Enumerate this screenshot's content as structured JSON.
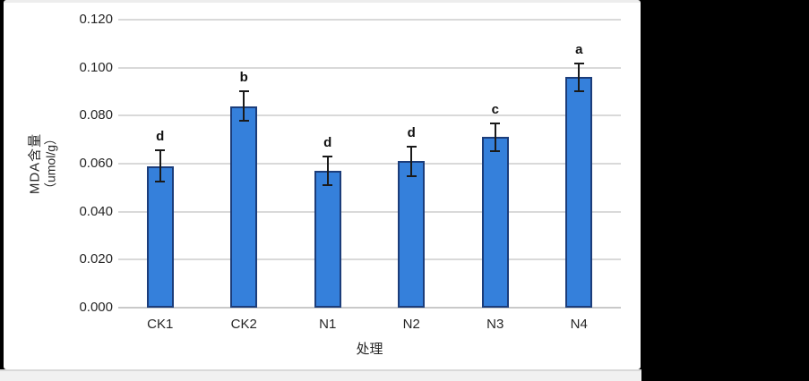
{
  "window": {
    "canvas_background": "#000000",
    "panel_background": "#ffffff"
  },
  "chart_data": {
    "type": "bar",
    "title": "",
    "categories": [
      "CK1",
      "CK2",
      "N1",
      "N2",
      "N3",
      "N4"
    ],
    "values": [
      0.059,
      0.084,
      0.057,
      0.061,
      0.071,
      0.096
    ],
    "errors": [
      0.007,
      0.0065,
      0.0065,
      0.0065,
      0.006,
      0.006
    ],
    "sig_letters": [
      "d",
      "b",
      "d",
      "d",
      "c",
      "a"
    ],
    "xlabel": "处理",
    "ylabel_line1": "MDA含量",
    "ylabel_line2": "（umol/g）",
    "ylim": [
      0,
      0.12
    ],
    "ytick_step": 0.02,
    "ytick_labels": [
      "0.000",
      "0.020",
      "0.040",
      "0.060",
      "0.080",
      "0.100",
      "0.120"
    ],
    "grid": true,
    "legend": "none",
    "bar_color": "#3580db",
    "bar_border_color": "#1c3d7a",
    "gridline_color": "#d9d9d9",
    "error_bar_color": "#1a1a1a"
  }
}
